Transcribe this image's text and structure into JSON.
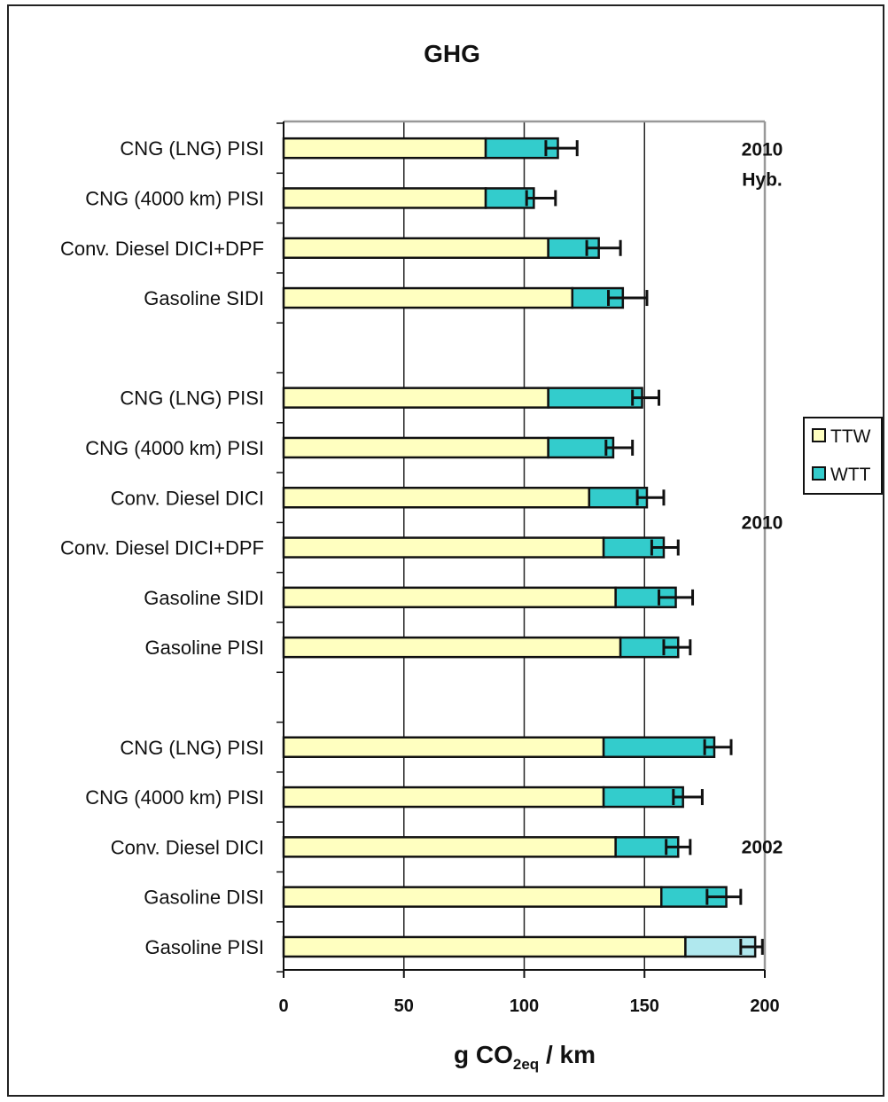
{
  "chart_data": {
    "type": "bar",
    "orientation": "horizontal",
    "stacked": true,
    "title": "GHG",
    "xlabel": {
      "main": "g CO",
      "sub": "2eq",
      "tail": " / km"
    },
    "xlim": [
      0,
      200
    ],
    "xticks": [
      0,
      50,
      100,
      150,
      200
    ],
    "grid": true,
    "legend_position": "right",
    "colors": {
      "TTW": "#ffffc0",
      "WTT": "#33cccc",
      "WTT_last": "#b0e8ee",
      "border": "#111111"
    },
    "series_names": [
      "TTW",
      "WTT"
    ],
    "groups": [
      {
        "label_lines": [
          "2010",
          "Hyb."
        ],
        "bars": [
          {
            "label": "CNG (LNG) PISI",
            "ttw": 84,
            "wtt": 30,
            "err_lo": 109,
            "err_hi": 122
          },
          {
            "label": "CNG (4000 km) PISI",
            "ttw": 84,
            "wtt": 20,
            "err_lo": 101,
            "err_hi": 113
          },
          {
            "label": "Conv. Diesel DICI+DPF",
            "ttw": 110,
            "wtt": 21,
            "err_lo": 126,
            "err_hi": 140
          },
          {
            "label": "Gasoline SIDI",
            "ttw": 120,
            "wtt": 21,
            "err_lo": 135,
            "err_hi": 151
          }
        ]
      },
      {
        "label_lines": [
          "2010"
        ],
        "bars": [
          {
            "label": "CNG (LNG) PISI",
            "ttw": 110,
            "wtt": 39,
            "err_lo": 145,
            "err_hi": 156
          },
          {
            "label": "CNG (4000 km) PISI",
            "ttw": 110,
            "wtt": 27,
            "err_lo": 134,
            "err_hi": 145
          },
          {
            "label": "Conv. Diesel DICI",
            "ttw": 127,
            "wtt": 24,
            "err_lo": 147,
            "err_hi": 158
          },
          {
            "label": "Conv. Diesel DICI+DPF",
            "ttw": 133,
            "wtt": 25,
            "err_lo": 153,
            "err_hi": 164
          },
          {
            "label": "Gasoline SIDI",
            "ttw": 138,
            "wtt": 25,
            "err_lo": 156,
            "err_hi": 170
          },
          {
            "label": "Gasoline PISI",
            "ttw": 140,
            "wtt": 24,
            "err_lo": 158,
            "err_hi": 169
          }
        ]
      },
      {
        "label_lines": [
          "2002"
        ],
        "bars": [
          {
            "label": "CNG (LNG) PISI",
            "ttw": 133,
            "wtt": 46,
            "err_lo": 175,
            "err_hi": 186
          },
          {
            "label": "CNG (4000 km) PISI",
            "ttw": 133,
            "wtt": 33,
            "err_lo": 162,
            "err_hi": 174
          },
          {
            "label": "Conv. Diesel DICI",
            "ttw": 138,
            "wtt": 26,
            "err_lo": 159,
            "err_hi": 169
          },
          {
            "label": "Gasoline DISI",
            "ttw": 157,
            "wtt": 27,
            "err_lo": 176,
            "err_hi": 190
          },
          {
            "label": "Gasoline PISI",
            "ttw": 167,
            "wtt": 29,
            "err_lo": 190,
            "err_hi": 199
          }
        ]
      }
    ]
  }
}
